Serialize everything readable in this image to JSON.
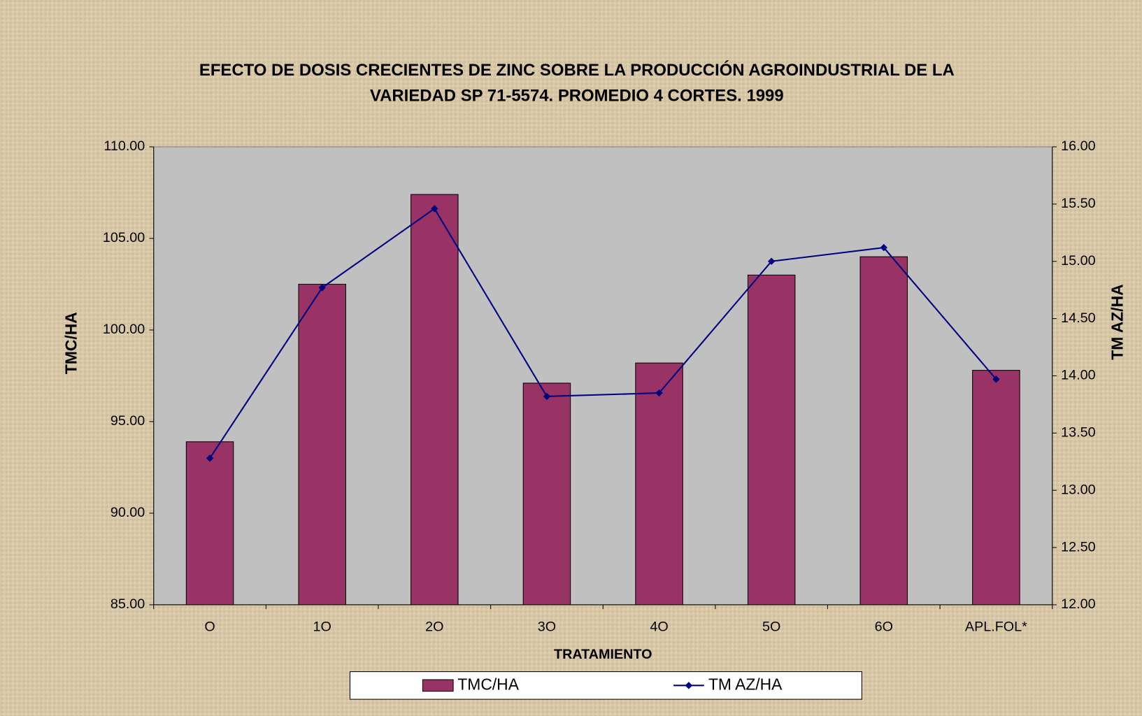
{
  "chart_data": {
    "type": "bar-line",
    "title": [
      "EFECTO DE DOSIS CRECIENTES DE ZINC SOBRE LA PRODUCCIÓN AGROINDUSTRIAL DE LA",
      "VARIEDAD SP 71-5574. PROMEDIO 4 CORTES. 1999"
    ],
    "x_label": "TRATAMIENTO",
    "y_label": "TMC/HA",
    "y2_label": "TM AZ/HA",
    "categories": [
      "O",
      "1O",
      "2O",
      "3O",
      "4O",
      "5O",
      "6O",
      "APL.FOL*"
    ],
    "series": [
      {
        "name": "TMC/HA",
        "type": "bar",
        "color": "#993366",
        "values": [
          93.9,
          102.5,
          107.4,
          97.1,
          98.2,
          103.0,
          104.0,
          97.8
        ]
      },
      {
        "name": "TM AZ/HA",
        "type": "line",
        "axis": "y2",
        "color": "#000080",
        "values": [
          13.28,
          14.77,
          15.46,
          13.82,
          13.85,
          15.0,
          15.12,
          13.97
        ]
      }
    ],
    "ylim": [
      85,
      110
    ],
    "yticks": [
      {
        "value": 85,
        "label": "85.00"
      },
      {
        "value": 90,
        "label": "90.00"
      },
      {
        "value": 95,
        "label": "95.00"
      },
      {
        "value": 100,
        "label": "100.00"
      },
      {
        "value": 105,
        "label": "105.00"
      },
      {
        "value": 110,
        "label": "110.00"
      }
    ],
    "y2lim": [
      12,
      16
    ],
    "y2ticks": [
      {
        "value": 12,
        "label": "12.00"
      },
      {
        "value": 12.5,
        "label": "12.50"
      },
      {
        "value": 13,
        "label": "13.00"
      },
      {
        "value": 13.5,
        "label": "13.50"
      },
      {
        "value": 14,
        "label": "14.00"
      },
      {
        "value": 14.5,
        "label": "14.50"
      },
      {
        "value": 15,
        "label": "15.00"
      },
      {
        "value": 15.5,
        "label": "15.50"
      },
      {
        "value": 16,
        "label": "16.00"
      }
    ],
    "legend": "bottom"
  }
}
